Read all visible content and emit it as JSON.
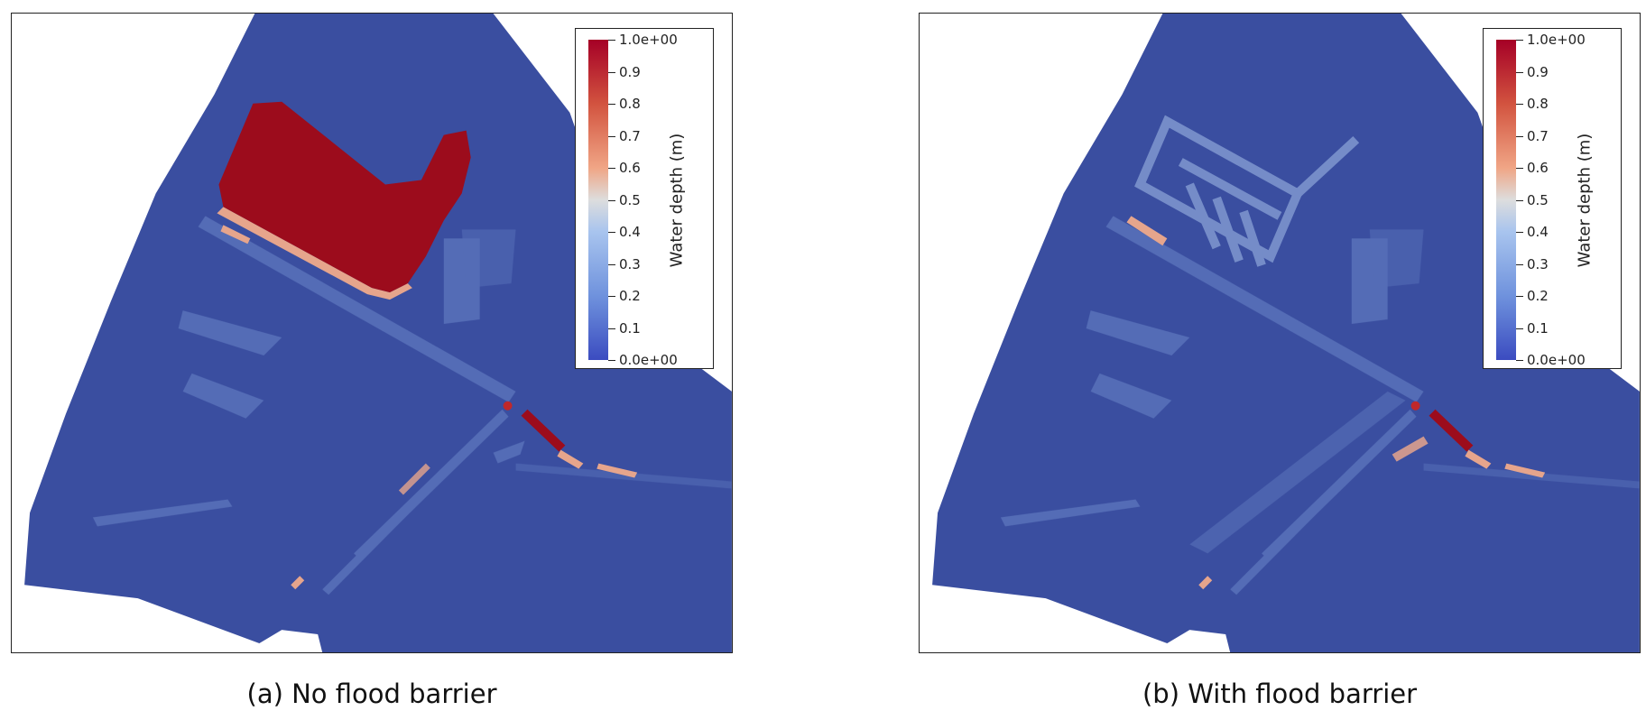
{
  "colors": {
    "max_depth": "#a50026",
    "mid_depth": "#dddddd",
    "min_depth": "#3b4cc0",
    "domain_fill": "#3a4ea0"
  },
  "panels": [
    {
      "caption": "(a) No flood barrier",
      "colorbar": {
        "title": "Water depth (m)",
        "max_label": "1.0e+00",
        "min_label": "0.0e+00",
        "ticks": [
          "0.9",
          "0.8",
          "0.7",
          "0.6",
          "0.5",
          "0.4",
          "0.3",
          "0.2",
          "0.1"
        ]
      }
    },
    {
      "caption": "(b) With flood barrier",
      "colorbar": {
        "title": "Water depth (m)",
        "max_label": "1.0e+00",
        "min_label": "0.0e+00",
        "ticks": [
          "0.9",
          "0.8",
          "0.7",
          "0.6",
          "0.5",
          "0.4",
          "0.3",
          "0.2",
          "0.1"
        ]
      }
    }
  ]
}
